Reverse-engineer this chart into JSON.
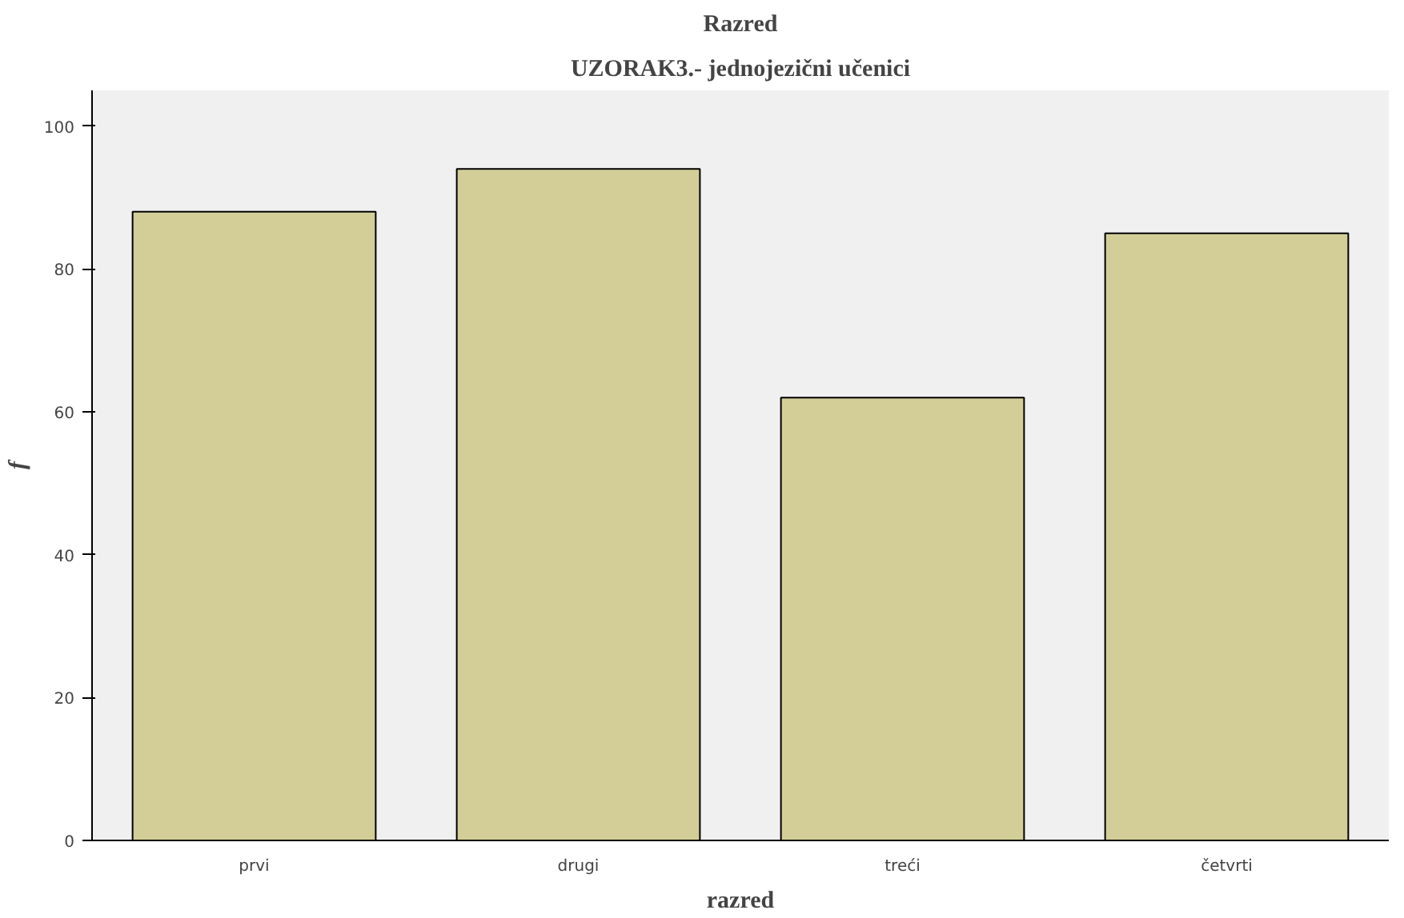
{
  "chart_data": {
    "type": "bar",
    "title": "Razred",
    "subtitle": "UZORAK3.- jednojezični učenici",
    "xlabel": "razred",
    "ylabel": "f",
    "categories": [
      "prvi",
      "drugi",
      "treći",
      "četvrti"
    ],
    "values": [
      88,
      94,
      62,
      85
    ],
    "color": "#d3ce97",
    "ylim": [
      0,
      105
    ],
    "yticks": [
      0,
      20,
      40,
      60,
      80,
      100
    ],
    "grid": false
  }
}
